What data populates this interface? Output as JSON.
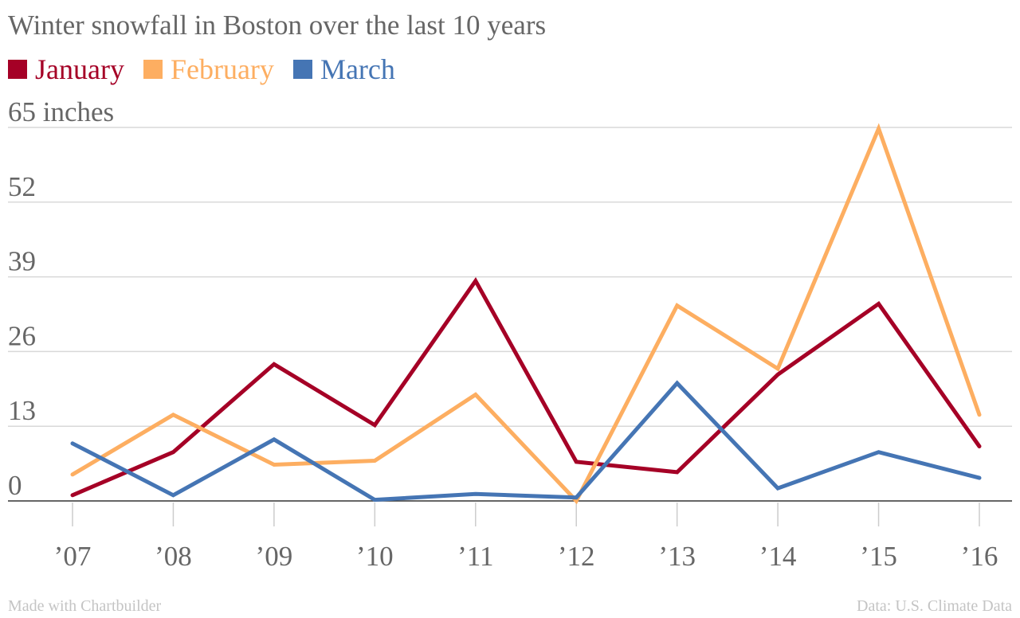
{
  "footer": {
    "credit": "Made with Chartbuilder",
    "source": "Data: U.S. Climate Data"
  },
  "chart_data": {
    "type": "line",
    "title": "Winter snowfall in Boston over the last 10 years",
    "xlabel": "",
    "ylabel": "",
    "categories": [
      "’07",
      "’08",
      "’09",
      "’10",
      "’11",
      "’12",
      "’13",
      "’14",
      "’15",
      "’16"
    ],
    "y_ticks": [
      0,
      13,
      26,
      39,
      52,
      65
    ],
    "y_tick_labels": [
      "0",
      "13",
      "26",
      "39",
      "52",
      "65 inches"
    ],
    "ylim": [
      0,
      65
    ],
    "grid": true,
    "legend_position": "top-left",
    "series": [
      {
        "name": "January",
        "color": "#a50026",
        "values": [
          1.0,
          8.5,
          23.8,
          13.2,
          38.3,
          6.8,
          5.0,
          22.0,
          34.3,
          9.5
        ]
      },
      {
        "name": "February",
        "color": "#fdae61",
        "values": [
          4.6,
          15.0,
          6.3,
          7.0,
          18.5,
          0.0,
          34.0,
          23.0,
          64.8,
          15.0
        ]
      },
      {
        "name": "March",
        "color": "#4575b4",
        "values": [
          10.0,
          1.0,
          10.7,
          0.2,
          1.2,
          0.6,
          20.5,
          2.2,
          8.5,
          4.0
        ]
      }
    ]
  }
}
